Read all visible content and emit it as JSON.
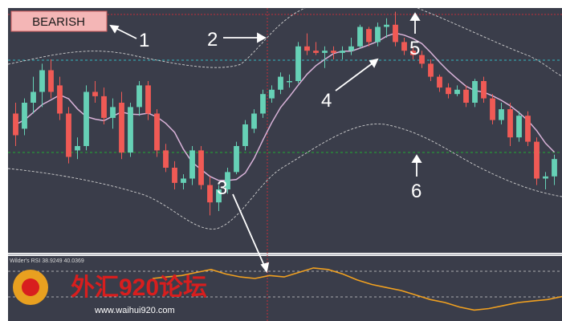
{
  "chart_data": {
    "type": "candlestick",
    "badge": "BEARISH",
    "annotations": [
      "1",
      "2",
      "3",
      "4",
      "5",
      "6"
    ],
    "indicator_label": "Wilder's RSI 38.9249 40.0369",
    "price_range": [
      0,
      100
    ],
    "candles": [
      {
        "o": 55,
        "h": 60,
        "l": 40,
        "c": 45
      },
      {
        "o": 48,
        "h": 62,
        "l": 45,
        "c": 60
      },
      {
        "o": 60,
        "h": 72,
        "l": 55,
        "c": 65
      },
      {
        "o": 65,
        "h": 78,
        "l": 58,
        "c": 75
      },
      {
        "o": 75,
        "h": 80,
        "l": 62,
        "c": 65
      },
      {
        "o": 68,
        "h": 72,
        "l": 52,
        "c": 55
      },
      {
        "o": 55,
        "h": 58,
        "l": 32,
        "c": 35
      },
      {
        "o": 38,
        "h": 44,
        "l": 34,
        "c": 40
      },
      {
        "o": 40,
        "h": 68,
        "l": 38,
        "c": 65
      },
      {
        "o": 65,
        "h": 70,
        "l": 60,
        "c": 63
      },
      {
        "o": 63,
        "h": 67,
        "l": 50,
        "c": 53
      },
      {
        "o": 53,
        "h": 62,
        "l": 48,
        "c": 58
      },
      {
        "o": 60,
        "h": 65,
        "l": 34,
        "c": 37
      },
      {
        "o": 37,
        "h": 60,
        "l": 35,
        "c": 58
      },
      {
        "o": 58,
        "h": 70,
        "l": 54,
        "c": 68
      },
      {
        "o": 68,
        "h": 70,
        "l": 52,
        "c": 55
      },
      {
        "o": 55,
        "h": 57,
        "l": 35,
        "c": 38
      },
      {
        "o": 38,
        "h": 41,
        "l": 28,
        "c": 30
      },
      {
        "o": 30,
        "h": 33,
        "l": 20,
        "c": 23
      },
      {
        "o": 23,
        "h": 27,
        "l": 20,
        "c": 25
      },
      {
        "o": 25,
        "h": 40,
        "l": 22,
        "c": 38
      },
      {
        "o": 38,
        "h": 40,
        "l": 20,
        "c": 22
      },
      {
        "o": 22,
        "h": 26,
        "l": 8,
        "c": 14
      },
      {
        "o": 14,
        "h": 22,
        "l": 10,
        "c": 20
      },
      {
        "o": 20,
        "h": 30,
        "l": 18,
        "c": 28
      },
      {
        "o": 28,
        "h": 42,
        "l": 27,
        "c": 40
      },
      {
        "o": 40,
        "h": 52,
        "l": 38,
        "c": 50
      },
      {
        "o": 48,
        "h": 57,
        "l": 46,
        "c": 55
      },
      {
        "o": 55,
        "h": 66,
        "l": 53,
        "c": 64
      },
      {
        "o": 62,
        "h": 68,
        "l": 60,
        "c": 66
      },
      {
        "o": 66,
        "h": 74,
        "l": 64,
        "c": 72
      },
      {
        "o": 70,
        "h": 73,
        "l": 67,
        "c": 70
      },
      {
        "o": 70,
        "h": 88,
        "l": 69,
        "c": 86
      },
      {
        "o": 86,
        "h": 92,
        "l": 82,
        "c": 84
      },
      {
        "o": 84,
        "h": 88,
        "l": 82,
        "c": 83
      },
      {
        "o": 83,
        "h": 86,
        "l": 76,
        "c": 84
      },
      {
        "o": 84,
        "h": 86,
        "l": 80,
        "c": 83
      },
      {
        "o": 83,
        "h": 86,
        "l": 80,
        "c": 84
      },
      {
        "o": 84,
        "h": 90,
        "l": 82,
        "c": 86
      },
      {
        "o": 86,
        "h": 96,
        "l": 85,
        "c": 95
      },
      {
        "o": 94,
        "h": 95,
        "l": 86,
        "c": 88
      },
      {
        "o": 88,
        "h": 97,
        "l": 86,
        "c": 95
      },
      {
        "o": 95,
        "h": 99,
        "l": 90,
        "c": 96
      },
      {
        "o": 96,
        "h": 102,
        "l": 86,
        "c": 88
      },
      {
        "o": 88,
        "h": 90,
        "l": 82,
        "c": 84
      },
      {
        "o": 84,
        "h": 86,
        "l": 80,
        "c": 82
      },
      {
        "o": 82,
        "h": 84,
        "l": 76,
        "c": 78
      },
      {
        "o": 78,
        "h": 80,
        "l": 70,
        "c": 72
      },
      {
        "o": 72,
        "h": 73,
        "l": 65,
        "c": 67
      },
      {
        "o": 67,
        "h": 69,
        "l": 62,
        "c": 64
      },
      {
        "o": 64,
        "h": 68,
        "l": 63,
        "c": 66
      },
      {
        "o": 66,
        "h": 68,
        "l": 58,
        "c": 60
      },
      {
        "o": 60,
        "h": 71,
        "l": 58,
        "c": 70
      },
      {
        "o": 70,
        "h": 72,
        "l": 60,
        "c": 62
      },
      {
        "o": 62,
        "h": 64,
        "l": 50,
        "c": 52
      },
      {
        "o": 52,
        "h": 60,
        "l": 50,
        "c": 57
      },
      {
        "o": 57,
        "h": 60,
        "l": 40,
        "c": 44
      },
      {
        "o": 44,
        "h": 56,
        "l": 42,
        "c": 54
      },
      {
        "o": 54,
        "h": 56,
        "l": 40,
        "c": 42
      },
      {
        "o": 42,
        "h": 44,
        "l": 22,
        "c": 25
      },
      {
        "o": 25,
        "h": 28,
        "l": 20,
        "c": 26
      },
      {
        "o": 26,
        "h": 36,
        "l": 22,
        "c": 34
      }
    ],
    "rsi": [
      54,
      55,
      56,
      58,
      60,
      57,
      55,
      54,
      56,
      55,
      58,
      61,
      60,
      57,
      53,
      50,
      48,
      46,
      43,
      40,
      38,
      35,
      33,
      34,
      36,
      38,
      39,
      40,
      42
    ]
  },
  "watermark": {
    "brand": "外汇920论坛",
    "url": "www.waihui920.com"
  },
  "colors": {
    "bg": "#3a3d4a",
    "bull": "#66d1b6",
    "bear": "#f05a55",
    "sma": "#d9b3d9",
    "band": "#cfcfcf",
    "cyan_line": "#34b8c0",
    "green_line": "#22aa33",
    "rsi_line": "#f0a020",
    "badge_bg": "#f4b6b6"
  }
}
